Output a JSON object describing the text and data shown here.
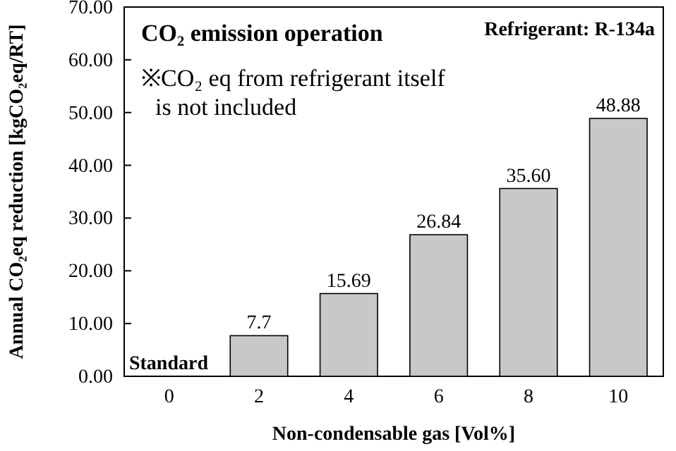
{
  "chart_data": {
    "type": "bar",
    "title": "CO₂ emission operation",
    "xlabel": "Non-condensable gas [Vol%]",
    "ylabel": "Annual CO₂eq reduction [kgCO₂eq/RT]",
    "annotations": [
      "Refrigerant: R-134a",
      "※CO₂ eq from refrigerant itself is not included"
    ],
    "categories": [
      "0",
      "2",
      "4",
      "6",
      "8",
      "10"
    ],
    "values": [
      0,
      7.7,
      15.69,
      26.84,
      35.6,
      48.88
    ],
    "value_labels": [
      "Standard",
      "7.7",
      "15.69",
      "26.84",
      "35.60",
      "48.88"
    ],
    "color": "#c8c8c8",
    "ylim": [
      0,
      70
    ],
    "yticks": [
      {
        "value": 0,
        "label": "0.00"
      },
      {
        "value": 10,
        "label": "10.00"
      },
      {
        "value": 20,
        "label": "20.00"
      },
      {
        "value": 30,
        "label": "30.00"
      },
      {
        "value": 40,
        "label": "40.00"
      },
      {
        "value": 50,
        "label": "50.00"
      },
      {
        "value": 60,
        "label": "60.00"
      },
      {
        "value": 70,
        "label": "70.00"
      }
    ]
  }
}
